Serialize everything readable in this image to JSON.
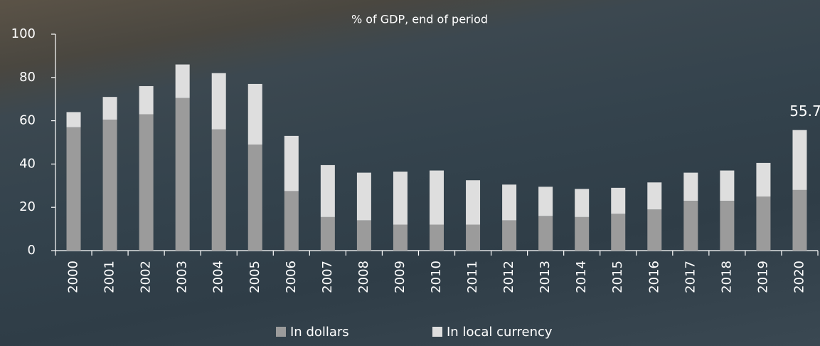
{
  "chart_data": {
    "type": "stacked-bar",
    "title": "% of GDP, end of period",
    "categories": [
      "2000",
      "2001",
      "2002",
      "2003",
      "2004",
      "2005",
      "2006",
      "2007",
      "2008",
      "2009",
      "2010",
      "2011",
      "2012",
      "2013",
      "2014",
      "2015",
      "2016",
      "2017",
      "2018",
      "2019",
      "2020"
    ],
    "series": [
      {
        "name": "In dollars",
        "color": "#9b9b9b",
        "values": [
          57,
          60.5,
          63,
          70.5,
          56,
          49,
          27.5,
          15.5,
          14,
          12,
          12,
          12,
          14,
          16,
          15.5,
          17,
          19,
          23,
          23,
          25,
          28
        ]
      },
      {
        "name": "In local currency",
        "color": "#dedede",
        "values": [
          7,
          10.5,
          13,
          15.5,
          26,
          28,
          25.5,
          24,
          22,
          24.5,
          25,
          20.5,
          16.5,
          13.5,
          13,
          12,
          12.5,
          13,
          14,
          15.5,
          27.7
        ]
      }
    ],
    "total_labels": [
      null,
      null,
      null,
      null,
      null,
      null,
      null,
      null,
      null,
      null,
      null,
      null,
      null,
      null,
      null,
      null,
      null,
      null,
      null,
      null,
      55.7
    ],
    "ylim": [
      0,
      100
    ],
    "yticks": [
      0,
      20,
      40,
      60,
      80,
      100
    ],
    "legend": "bottom"
  }
}
